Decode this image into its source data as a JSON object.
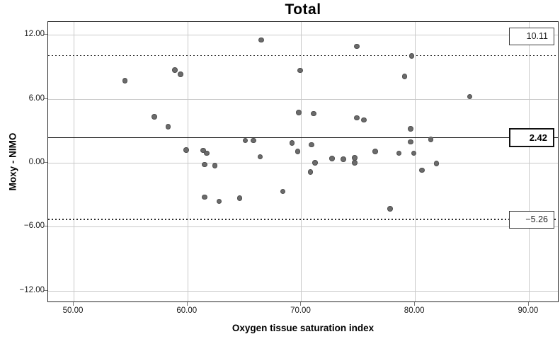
{
  "chart_data": {
    "type": "scatter",
    "title": "Total",
    "xlabel": "Oxygen tissue saturation index",
    "ylabel": "Moxy - NIMO",
    "xlim": [
      47.76,
      92.68
    ],
    "ylim": [
      -13.13,
      13.2
    ],
    "grid": true,
    "legend": "none",
    "x_ticks": {
      "values": [
        50,
        60,
        70,
        80,
        90
      ],
      "labels": [
        "50.00",
        "60.00",
        "70.00",
        "80.00",
        "90.00"
      ]
    },
    "y_ticks": {
      "values": [
        12,
        6,
        0,
        -6,
        -12
      ],
      "labels": [
        "12.00",
        "6.00",
        "0.00",
        "−6.00",
        "−12.00"
      ]
    },
    "reference_lines": {
      "upper_loa": {
        "value": 10.11,
        "label": "10.11",
        "style": "dashed"
      },
      "mean": {
        "value": 2.42,
        "label": "2.42",
        "style": "solid"
      },
      "lower_loa": {
        "value": -5.26,
        "label": "−5.26",
        "style": "dashed"
      }
    },
    "points": [
      [
        54.5,
        7.7
      ],
      [
        57.1,
        4.3
      ],
      [
        58.3,
        3.4
      ],
      [
        58.9,
        8.7
      ],
      [
        59.4,
        8.3
      ],
      [
        59.9,
        1.2
      ],
      [
        61.4,
        1.15
      ],
      [
        61.7,
        0.9
      ],
      [
        61.5,
        -0.15
      ],
      [
        62.4,
        -0.25
      ],
      [
        61.5,
        -3.2
      ],
      [
        62.8,
        -3.6
      ],
      [
        64.6,
        -3.3
      ],
      [
        65.1,
        2.1
      ],
      [
        65.8,
        2.1
      ],
      [
        66.4,
        0.55
      ],
      [
        66.5,
        11.5
      ],
      [
        68.4,
        -2.7
      ],
      [
        69.2,
        1.85
      ],
      [
        69.7,
        1.05
      ],
      [
        69.8,
        4.7
      ],
      [
        69.9,
        8.65
      ],
      [
        70.8,
        -0.85
      ],
      [
        70.9,
        1.7
      ],
      [
        71.1,
        4.6
      ],
      [
        71.2,
        0.0
      ],
      [
        72.7,
        0.4
      ],
      [
        73.7,
        0.35
      ],
      [
        74.7,
        0.45
      ],
      [
        74.7,
        0.0
      ],
      [
        74.9,
        10.9
      ],
      [
        74.9,
        4.2
      ],
      [
        75.5,
        4.0
      ],
      [
        76.5,
        1.05
      ],
      [
        77.8,
        -4.3
      ],
      [
        78.6,
        0.9
      ],
      [
        79.1,
        8.1
      ],
      [
        79.6,
        3.2
      ],
      [
        79.6,
        1.95
      ],
      [
        79.7,
        10.0
      ],
      [
        79.9,
        0.9
      ],
      [
        80.6,
        -0.7
      ],
      [
        81.4,
        2.2
      ],
      [
        81.9,
        -0.05
      ],
      [
        84.8,
        6.2
      ]
    ]
  },
  "colors": {
    "background": "#ffffff",
    "point_fill": "#6b6b6b",
    "point_edge": "#4e4e4e",
    "gridline": "#c9c9c9",
    "frame": "#262626",
    "reference_line": "#1a1a1a"
  }
}
